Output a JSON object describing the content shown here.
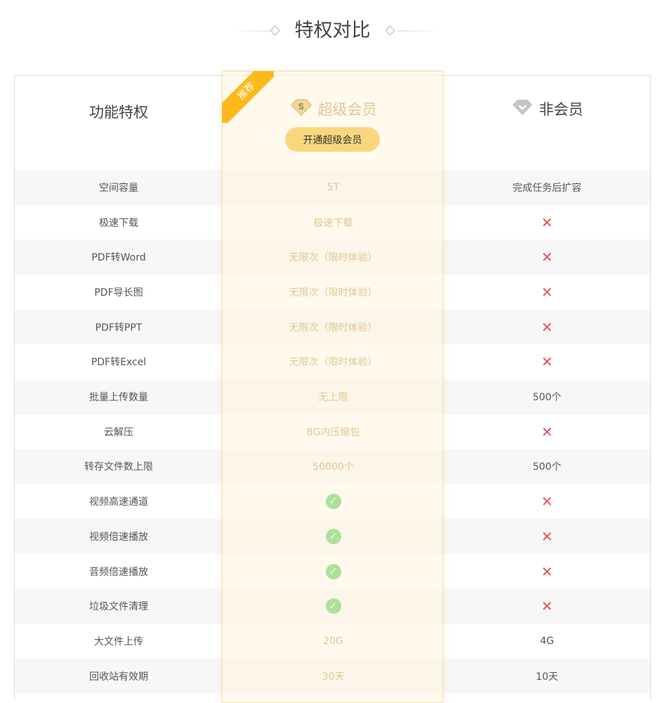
{
  "title": "特权对比",
  "header": {
    "feature_col": "功能特权",
    "vip_col": "超级会员",
    "vip_button": "开通超级会员",
    "ribbon": "推荐",
    "free_col": "非会员",
    "vip_icon": "s-diamond-icon",
    "free_icon": "gray-diamond-icon"
  },
  "colors": {
    "accent": "#fad77e",
    "ribbon": "#fbb91b",
    "vip_text": "#c8a05a",
    "cross": "#e8505b",
    "check": "#6bd26b"
  },
  "rows": [
    {
      "feature": "空间容量",
      "vip": "5T",
      "free": "完成任务后扩容"
    },
    {
      "feature": "极速下载",
      "vip": "极速下载",
      "free": "x"
    },
    {
      "feature": "PDF转Word",
      "vip": "无限次（限时体验）",
      "free": "x"
    },
    {
      "feature": "PDF导长图",
      "vip": "无限次（限时体验）",
      "free": "x"
    },
    {
      "feature": "PDF转PPT",
      "vip": "无限次（限时体验）",
      "free": "x"
    },
    {
      "feature": "PDF转Excel",
      "vip": "无限次（限时体验）",
      "free": "x"
    },
    {
      "feature": "批量上传数量",
      "vip": "无上限",
      "free": "500个"
    },
    {
      "feature": "云解压",
      "vip": "8G内压缩包",
      "free": "x"
    },
    {
      "feature": "转存文件数上限",
      "vip": "50000个",
      "free": "500个"
    },
    {
      "feature": "视频高速通道",
      "vip": "check",
      "free": "x"
    },
    {
      "feature": "视频倍速播放",
      "vip": "check",
      "free": "x"
    },
    {
      "feature": "音频倍速播放",
      "vip": "check",
      "free": "x"
    },
    {
      "feature": "垃圾文件清理",
      "vip": "check",
      "free": "x"
    },
    {
      "feature": "大文件上传",
      "vip": "20G",
      "free": "4G"
    },
    {
      "feature": "回收站有效期",
      "vip": "30天",
      "free": "10天"
    }
  ]
}
